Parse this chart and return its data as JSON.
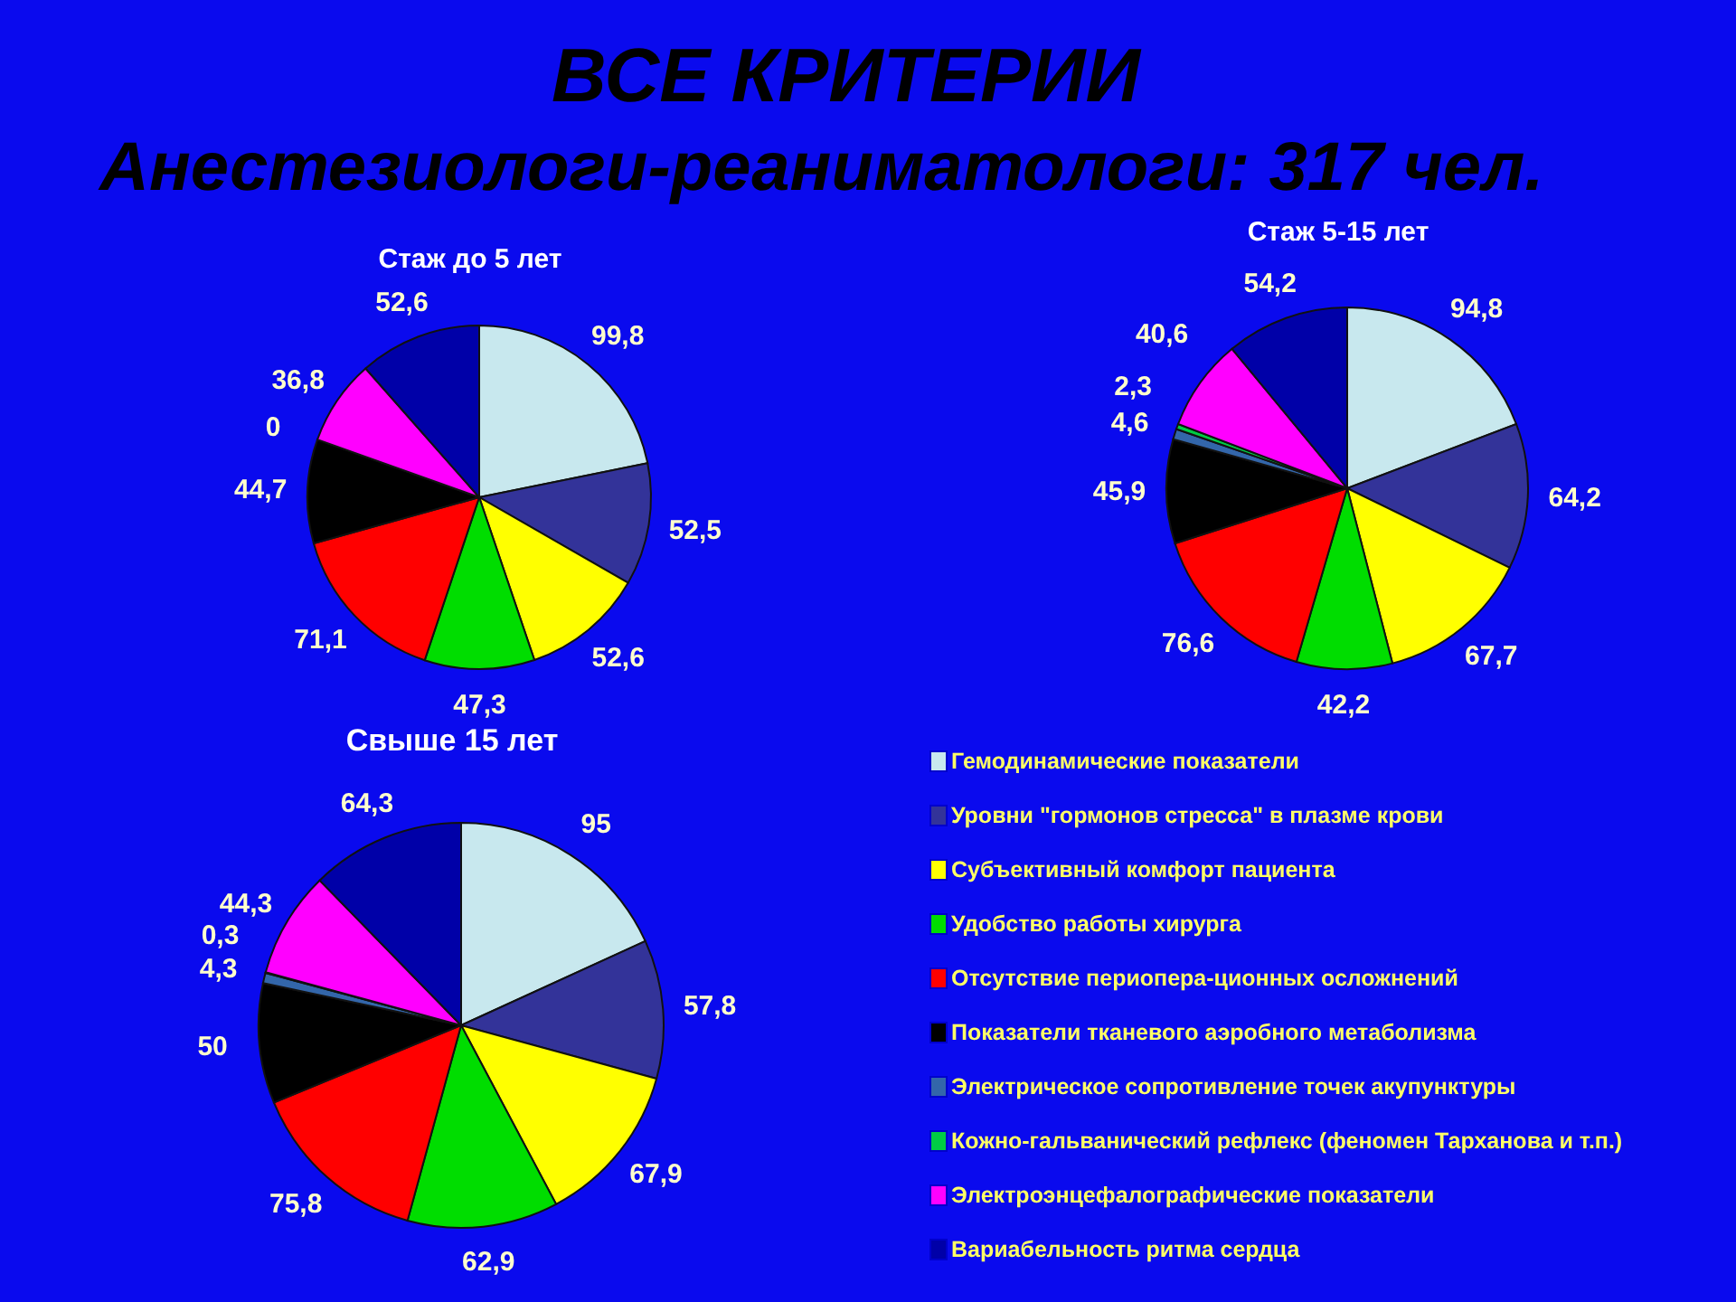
{
  "chart_data": [
    {
      "type": "other",
      "title": "ВСЕ КРИТЕРИИ",
      "subtitle": "Анестезиологи-реаниматологи: 317 чел."
    },
    {
      "type": "pie",
      "title": "Стаж до 5 лет",
      "categories": [
        null,
        null,
        null,
        null,
        null,
        null,
        null,
        null,
        null,
        null
      ],
      "values": [
        99.8,
        52.5,
        52.6,
        47.3,
        71.1,
        44.7,
        0,
        null,
        36.8,
        52.6
      ],
      "colors": [
        "#c8e8ee",
        "#333399",
        "#ffff00",
        "#00dd00",
        "#ff0000",
        "#000000",
        "#3366aa",
        "#00cc44",
        "#ff00ff",
        "#0000a8"
      ],
      "value_labels": [
        "99,8",
        "52,5",
        "52,6",
        "47,3",
        "71,1",
        "44,7",
        "0",
        null,
        "36,8",
        "52,6"
      ]
    },
    {
      "type": "pie",
      "title": "Стаж 5-15 лет",
      "categories": [
        null,
        null,
        null,
        null,
        null,
        null,
        null,
        null,
        null,
        null
      ],
      "values": [
        94.8,
        64.2,
        67.7,
        42.2,
        76.6,
        45.9,
        4.6,
        2.3,
        40.6,
        54.2
      ],
      "colors": [
        "#c8e8ee",
        "#333399",
        "#ffff00",
        "#00dd00",
        "#ff0000",
        "#000000",
        "#3366aa",
        "#00cc44",
        "#ff00ff",
        "#0000a8"
      ],
      "value_labels": [
        "94,8",
        "64,2",
        "67,7",
        "42,2",
        "76,6",
        "45,9",
        "4,6",
        "2,3",
        "40,6",
        "54,2"
      ]
    },
    {
      "type": "pie",
      "title": "Свыше 15 лет",
      "categories": [
        "Гемодинамические показатели",
        "Уровни \"гормонов стресса\" в плазме крови",
        "Субъективный комфорт пациента",
        "Удобство работы хирурга",
        "Отсутствие периопера-ционных осложнений",
        "Показатели тканевого аэробного метаболизма",
        "Электрическое сопротивление точек акупунктуры",
        "Кожно-гальванический рефлекс (феномен Тарханова и т.п.)",
        "Электроэнцефалографические показатели",
        "Вариабельность ритма сердца"
      ],
      "values": [
        95,
        57.8,
        67.9,
        62.9,
        75.8,
        50,
        4.3,
        0.3,
        44.3,
        64.3
      ],
      "colors": [
        "#c8e8ee",
        "#333399",
        "#ffff00",
        "#00dd00",
        "#ff0000",
        "#000000",
        "#3366aa",
        "#00cc44",
        "#ff00ff",
        "#0000a8"
      ],
      "value_labels": [
        "95",
        "57,8",
        "67,9",
        "62,9",
        "75,8",
        "50",
        "4,3",
        "0,3",
        "44,3",
        "64,3"
      ],
      "legend": "right"
    }
  ]
}
